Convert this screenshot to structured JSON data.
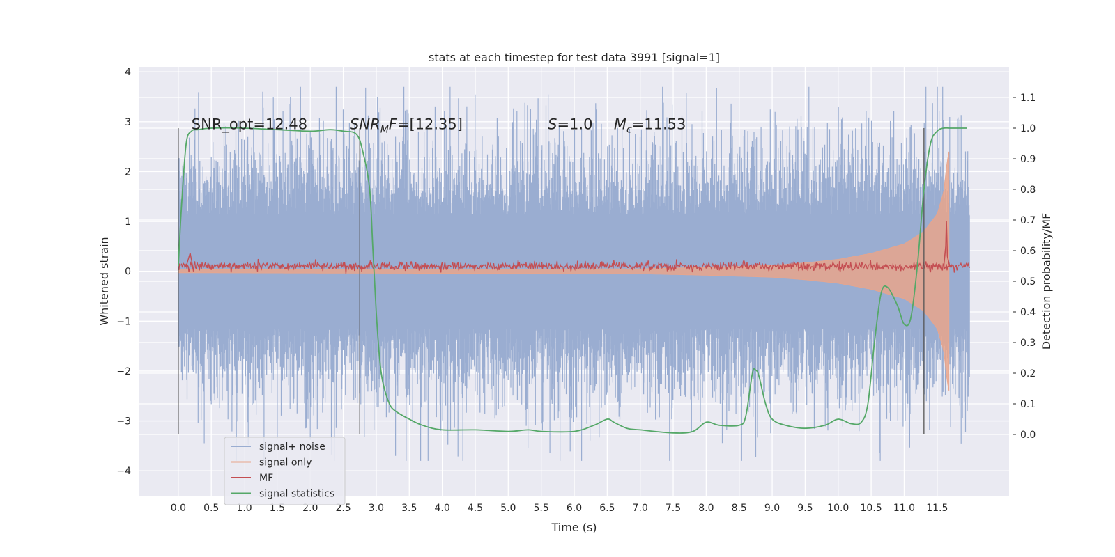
{
  "chart_data": {
    "type": "line",
    "title": "stats at each timestep for test data 3991 [signal=1]",
    "xlabel": "Time (s)",
    "ylabel": "Whitened strain",
    "y2label": "Detection probability/MF",
    "xlim": [
      -0.59,
      12.59
    ],
    "ylim": [
      -4.5,
      4.1
    ],
    "y2lim": [
      -0.2,
      1.2
    ],
    "x_ticks": [
      0.0,
      0.5,
      1.0,
      1.5,
      2.0,
      2.5,
      3.0,
      3.5,
      4.0,
      4.5,
      5.0,
      5.5,
      6.0,
      6.5,
      7.0,
      7.5,
      8.0,
      8.5,
      9.0,
      9.5,
      10.0,
      10.5,
      11.0,
      11.5
    ],
    "y_ticks": [
      -4,
      -3,
      -2,
      -1,
      0,
      1,
      2,
      3,
      4
    ],
    "y2_ticks": [
      0.0,
      0.1,
      0.2,
      0.3,
      0.4,
      0.5,
      0.6,
      0.7,
      0.8,
      0.9,
      1.0,
      1.1
    ],
    "grid": true,
    "legend_position": "bottom-left",
    "vertical_lines": [
      0.0,
      2.75,
      11.3
    ],
    "annotations": [
      {
        "text": "SNR_opt=12.48",
        "x": 0.2,
        "y": 2.85
      },
      {
        "text": "SNR_MF=[12.35]",
        "x": 2.6,
        "y": 2.85
      },
      {
        "text": "S=1.0",
        "x": 5.6,
        "y": 2.85
      },
      {
        "text": "M_c=11.53",
        "x": 6.6,
        "y": 2.85
      }
    ],
    "series": [
      {
        "name": "signal+ noise",
        "color": "#9aadd1",
        "axis": "left",
        "x_range": [
          0.0,
          11.99
        ],
        "typical_range": [
          -2.2,
          2.2
        ],
        "extremes": [
          -3.8,
          3.7
        ],
        "values": []
      },
      {
        "name": "signal only",
        "color": "#e8a58c",
        "axis": "left",
        "x_range": [
          0.0,
          11.68
        ],
        "envelope": {
          "x": [
            0,
            7,
            8,
            9,
            9.5,
            10,
            10.5,
            11,
            11.3,
            11.5,
            11.6,
            11.65,
            11.68
          ],
          "amp": [
            0.03,
            0.05,
            0.08,
            0.12,
            0.17,
            0.24,
            0.36,
            0.55,
            0.8,
            1.15,
            1.6,
            2.2,
            2.4
          ]
        },
        "values": []
      },
      {
        "name": "MF",
        "color": "#c44e52",
        "axis": "left",
        "x_range": [
          0.0,
          11.99
        ],
        "baseline": 0.1,
        "spike": {
          "x": 11.64,
          "y": 1.0
        },
        "values": []
      },
      {
        "name": "signal statistics",
        "color": "#55a868",
        "axis": "right",
        "x": [
          0.0,
          0.05,
          0.12,
          0.2,
          0.3,
          0.5,
          1.0,
          1.5,
          2.0,
          2.3,
          2.5,
          2.7,
          2.8,
          2.9,
          2.95,
          3.0,
          3.05,
          3.1,
          3.2,
          3.3,
          3.5,
          3.7,
          4.0,
          4.5,
          5.0,
          5.3,
          5.5,
          6.0,
          6.3,
          6.5,
          6.6,
          6.8,
          7.0,
          7.5,
          7.8,
          8.0,
          8.2,
          8.5,
          8.6,
          8.7,
          8.75,
          8.8,
          8.9,
          9.0,
          9.2,
          9.5,
          9.8,
          10.0,
          10.2,
          10.35,
          10.45,
          10.55,
          10.65,
          10.75,
          10.9,
          11.0,
          11.1,
          11.2,
          11.3,
          11.4,
          11.5,
          11.6,
          11.7,
          11.8,
          11.95
        ],
        "values": [
          0.55,
          0.75,
          0.95,
          0.99,
          0.995,
          1.0,
          1.0,
          0.995,
          0.99,
          0.995,
          0.99,
          0.98,
          0.92,
          0.8,
          0.6,
          0.4,
          0.25,
          0.17,
          0.1,
          0.075,
          0.05,
          0.03,
          0.015,
          0.015,
          0.01,
          0.015,
          0.01,
          0.01,
          0.03,
          0.05,
          0.04,
          0.02,
          0.015,
          0.005,
          0.01,
          0.04,
          0.03,
          0.03,
          0.06,
          0.2,
          0.21,
          0.19,
          0.1,
          0.05,
          0.03,
          0.02,
          0.03,
          0.05,
          0.035,
          0.04,
          0.1,
          0.3,
          0.46,
          0.48,
          0.42,
          0.36,
          0.38,
          0.55,
          0.8,
          0.95,
          0.99,
          1.0,
          1.0,
          1.0,
          1.0
        ]
      }
    ]
  }
}
